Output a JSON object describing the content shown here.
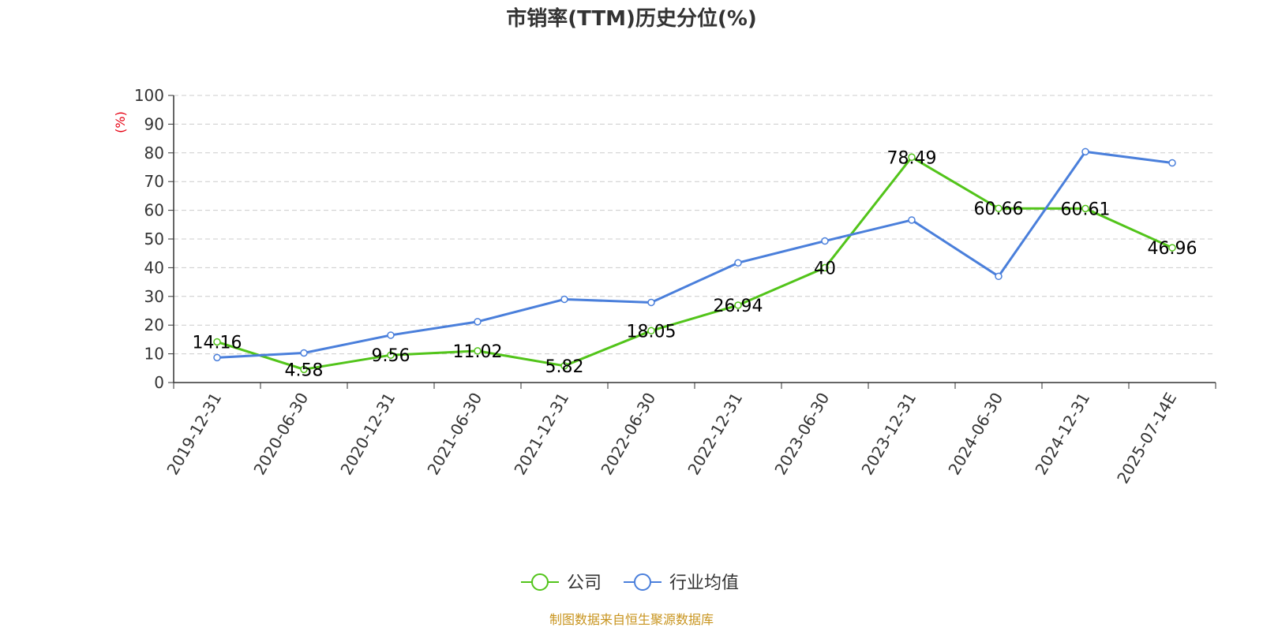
{
  "chart_data": {
    "type": "line",
    "title": "市销率(TTM)历史分位(%)",
    "ylabel": "(%)",
    "categories": [
      "2019-12-31",
      "2020-06-30",
      "2020-12-31",
      "2021-06-30",
      "2021-12-31",
      "2022-06-30",
      "2022-12-31",
      "2023-06-30",
      "2023-12-31",
      "2024-06-30",
      "2024-12-31",
      "2025-07-14E"
    ],
    "ylim": [
      0,
      100
    ],
    "yticks": [
      0,
      10,
      20,
      30,
      40,
      50,
      60,
      70,
      80,
      90,
      100
    ],
    "grid": true,
    "legend_position": "bottom-center",
    "series": [
      {
        "name": "公司",
        "color": "#52c41a",
        "values": [
          14.16,
          4.58,
          9.56,
          11.02,
          5.82,
          18.05,
          26.94,
          40,
          78.49,
          60.66,
          60.61,
          46.96
        ],
        "labels": [
          "14.16",
          "4.58",
          "9.56",
          "11.02",
          "5.82",
          "18.05",
          "26.94",
          "40",
          "78.49",
          "60.66",
          "60.61",
          "46.96"
        ]
      },
      {
        "name": "行业均值",
        "color": "#4a7fdb",
        "values": [
          8.7,
          10.3,
          16.5,
          21.2,
          29.0,
          27.9,
          41.7,
          49.3,
          56.6,
          37.0,
          80.4,
          76.5
        ]
      }
    ]
  },
  "source": "制图数据来自恒生聚源数据库"
}
